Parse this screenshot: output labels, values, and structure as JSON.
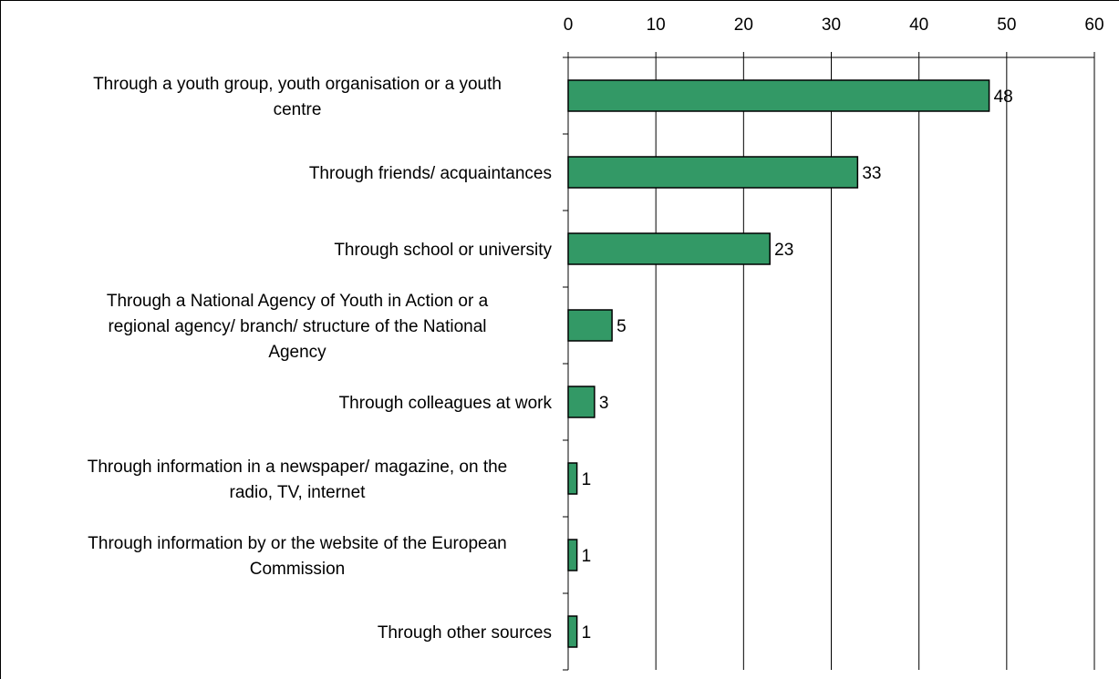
{
  "chart_data": {
    "type": "bar",
    "orientation": "horizontal",
    "title": "",
    "xlabel": "",
    "ylabel": "",
    "xlim": [
      0,
      60
    ],
    "x_ticks": [
      "0",
      "10",
      "20",
      "30",
      "40",
      "50",
      "60"
    ],
    "x_axis_position": "top",
    "grid": true,
    "legend": "none",
    "bar_color": "#339966",
    "categories": [
      [
        "Through a youth group, youth organisation or a youth",
        "centre"
      ],
      [
        "Through friends/ acquaintances"
      ],
      [
        "Through school or university"
      ],
      [
        "Through a National Agency of Youth in Action or a",
        "regional agency/ branch/ structure of the National",
        "Agency"
      ],
      [
        "Through colleagues at work"
      ],
      [
        "Through information in a newspaper/ magazine, on the",
        "radio, TV, internet"
      ],
      [
        "Through information by or the website of the European",
        "Commission"
      ],
      [
        "Through other sources"
      ]
    ],
    "values": [
      48,
      33,
      23,
      5,
      3,
      1,
      1,
      1
    ],
    "value_labels": [
      "48",
      "33",
      "23",
      "5",
      "3",
      "1",
      "1",
      "1"
    ]
  }
}
